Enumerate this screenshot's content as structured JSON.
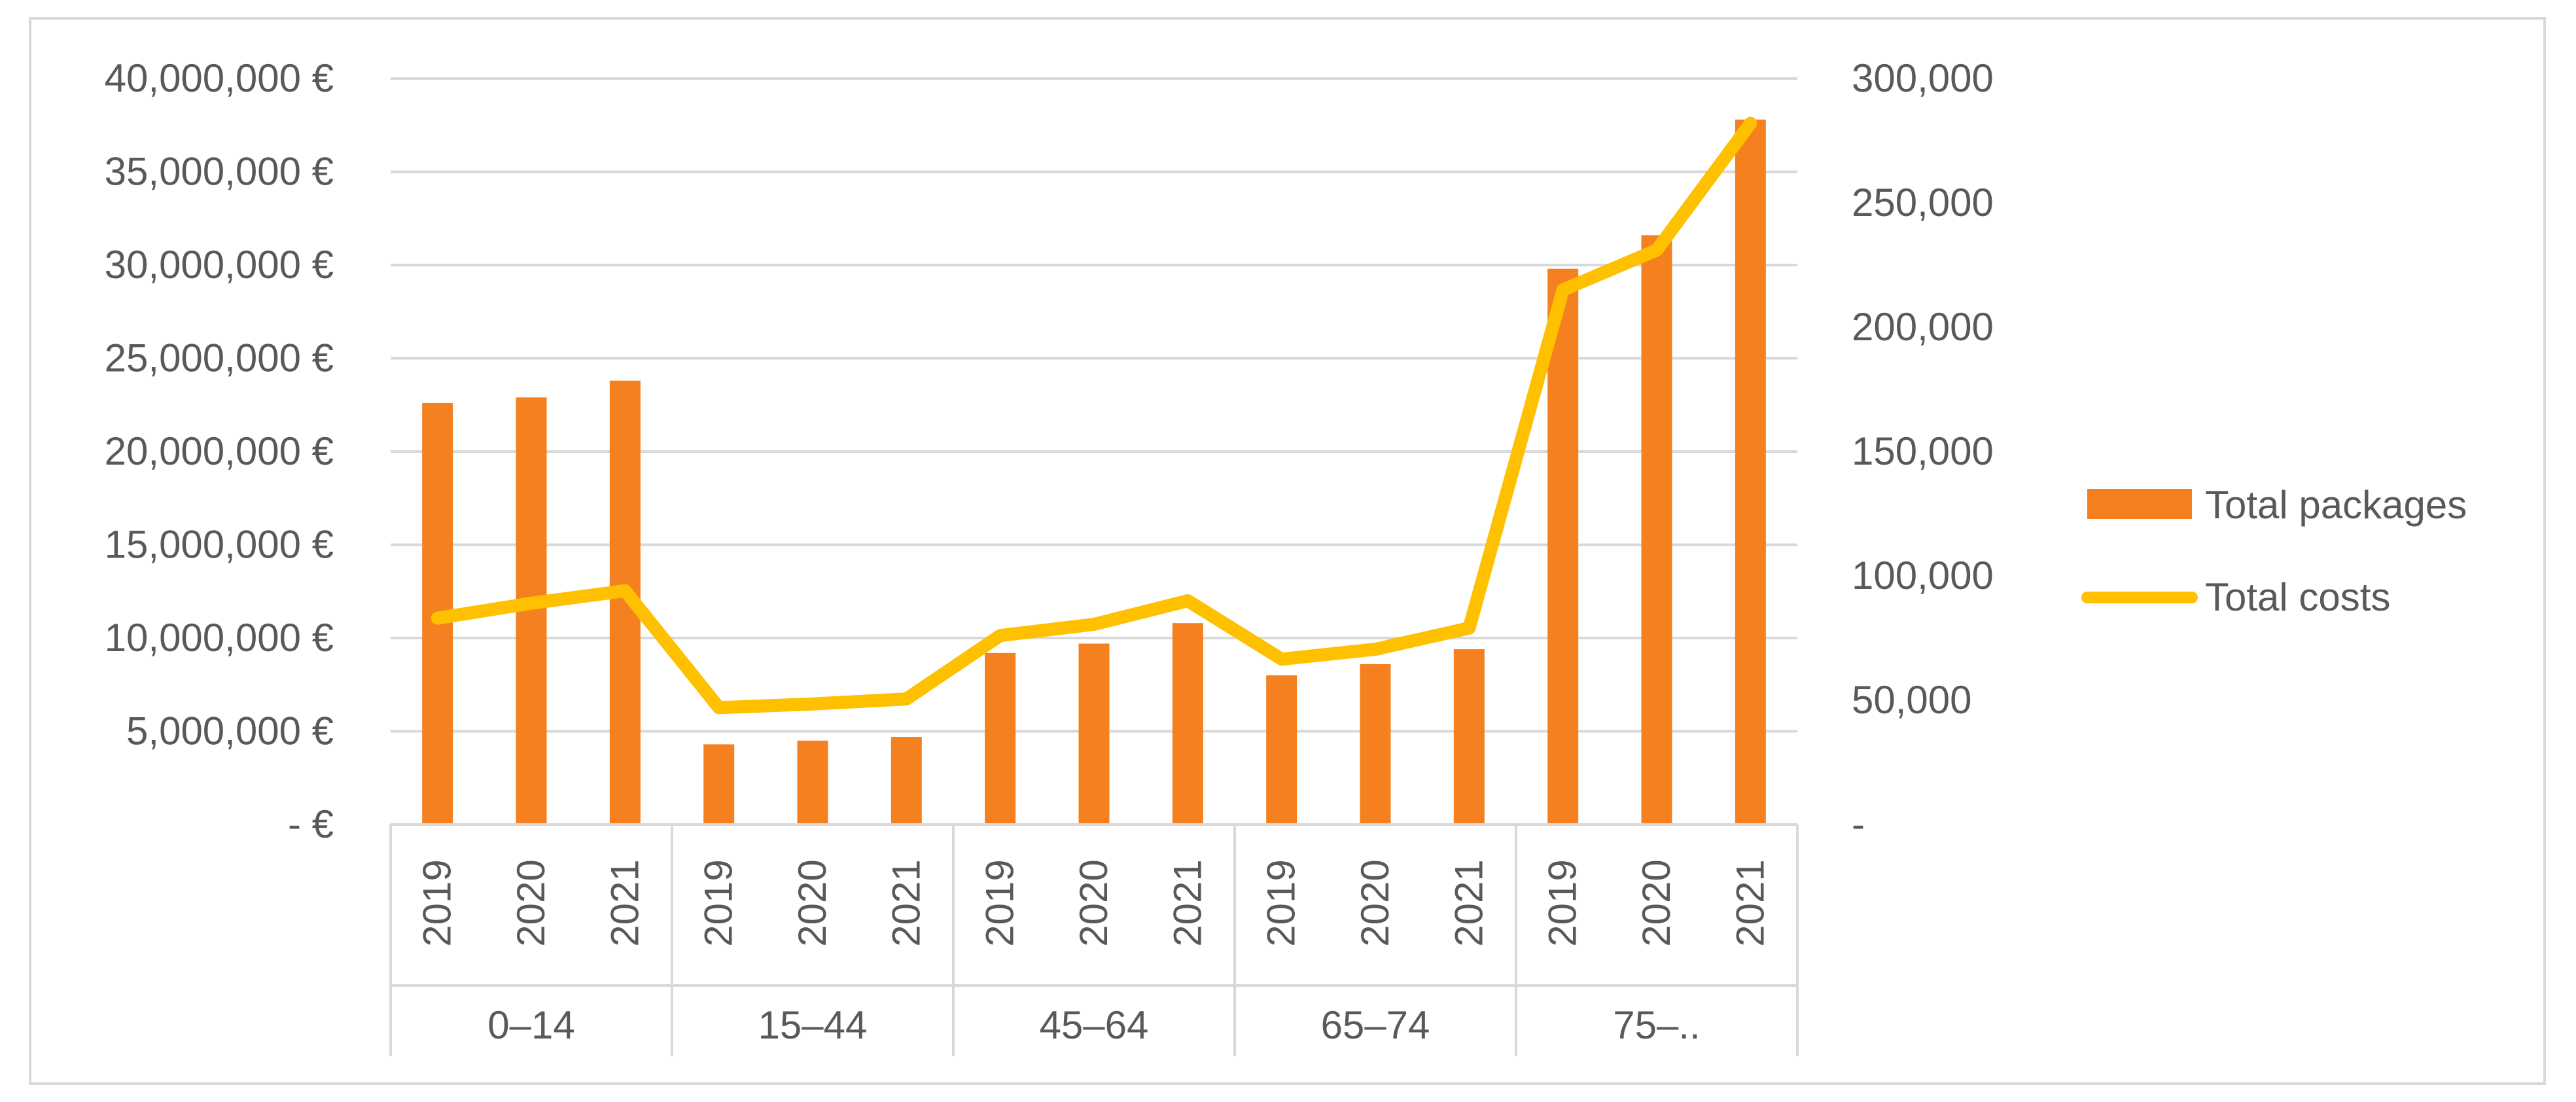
{
  "chart_data": {
    "type": "bar+line",
    "groups": [
      "0–14",
      "15–44",
      "45–64",
      "65–74",
      "75–.."
    ],
    "years": [
      "2019",
      "2020",
      "2021"
    ],
    "series": [
      {
        "name": "Total packages",
        "kind": "bar",
        "axis": "left",
        "color": "#F4801F",
        "values": [
          22600000,
          22900000,
          23800000,
          4300000,
          4500000,
          4700000,
          9200000,
          9700000,
          10800000,
          8000000,
          8600000,
          9400000,
          29800000,
          31600000,
          37800000
        ]
      },
      {
        "name": "Total costs",
        "kind": "line",
        "axis": "right",
        "color": "#FFC000",
        "values": [
          83000,
          89000,
          94000,
          47000,
          48500,
          50500,
          76000,
          80500,
          90000,
          66500,
          70500,
          79000,
          215000,
          231000,
          282000
        ]
      }
    ],
    "left_axis": {
      "ylim": [
        0,
        40000000
      ],
      "ticks": [
        "-   €",
        "5,000,000 €",
        "10,000,000 €",
        "15,000,000 €",
        "20,000,000 €",
        "25,000,000 €",
        "30,000,000 €",
        "35,000,000 €",
        "40,000,000 €"
      ]
    },
    "right_axis": {
      "ylim": [
        0,
        300000
      ],
      "ticks": [
        "-",
        "50,000",
        "100,000",
        "150,000",
        "200,000",
        "250,000",
        "300,000"
      ]
    },
    "legend": {
      "position": "right",
      "items": [
        "Total packages",
        "Total costs"
      ]
    },
    "gridlines": true
  }
}
